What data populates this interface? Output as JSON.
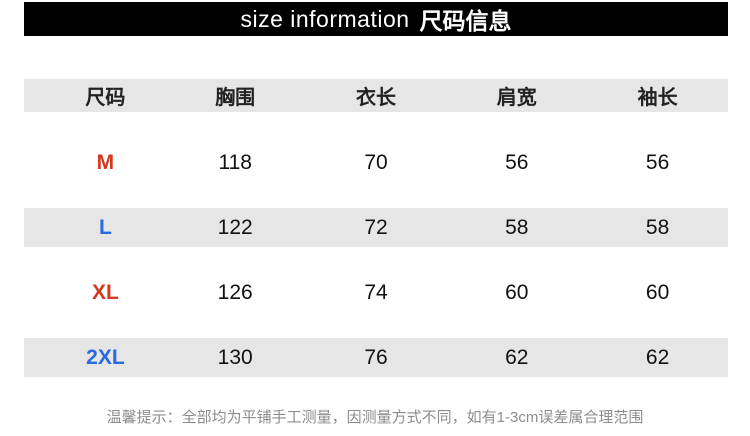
{
  "header": {
    "title_en": "size information",
    "title_zh": "尺码信息"
  },
  "chart_data": {
    "type": "table",
    "title": "size information 尺码信息",
    "columns": [
      "尺码",
      "胸围",
      "衣长",
      "肩宽",
      "袖长"
    ],
    "rows": [
      [
        "M",
        118,
        70,
        56,
        56
      ],
      [
        "L",
        122,
        72,
        58,
        58
      ],
      [
        "XL",
        126,
        74,
        60,
        60
      ],
      [
        "2XL",
        130,
        76,
        62,
        62
      ]
    ],
    "note": "温馨提示：全部均为平铺手工测量，因测量方式不同，如有1-3cm误差属合理范围"
  },
  "colors": {
    "bar_bg": "#000000",
    "bar_text": "#ffffff",
    "header_row_bg": "#e6e6e6",
    "stripe_row_bg": "#e6e6e6",
    "accent_red": "#d13a1e",
    "accent_blue": "#2a6ae0",
    "note_text": "#8c8c8c"
  }
}
